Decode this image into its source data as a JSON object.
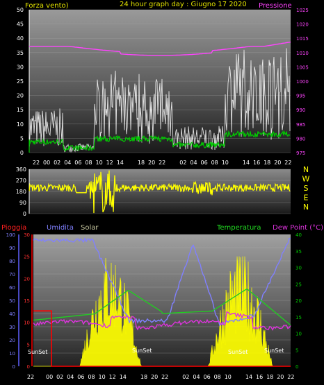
{
  "header": {
    "left_label": "Forza vento)",
    "title": "24 hour graph day : Giugno 17 2020",
    "right_label": "Pressione"
  },
  "wind_speed_axis": [
    "0",
    "5",
    "10",
    "15",
    "20",
    "25",
    "30",
    "35",
    "40",
    "45",
    "50"
  ],
  "pressure_axis": [
    "975",
    "980",
    "985",
    "990",
    "995",
    "1000",
    "1005",
    "1010",
    "1015",
    "1020",
    "1025"
  ],
  "hour_labels": [
    "22",
    "00",
    "02",
    "04",
    "06",
    "08",
    "10",
    "12",
    "14",
    "",
    "18",
    "20",
    "22",
    "",
    "02",
    "04",
    "06",
    "08",
    "10",
    "",
    "14",
    "16",
    "18",
    "20",
    "22"
  ],
  "direction_axis": [
    "0",
    "90",
    "180",
    "270",
    "360"
  ],
  "compass_labels": [
    "N",
    "W",
    "S",
    "E",
    "N"
  ],
  "lower_header": {
    "rain": "Pioggia",
    "humidity": "Umidita",
    "solar": "Solar",
    "temperature": "Temperatura",
    "dewpoint": "Dew Point (°C)"
  },
  "humidity_axis": [
    "0",
    "10",
    "20",
    "30",
    "40",
    "50",
    "60",
    "70",
    "80",
    "90",
    "100"
  ],
  "rain_axis": [
    "0",
    "5",
    "10",
    "15",
    "20",
    "25",
    "30"
  ],
  "temp_axis": [
    "0",
    "5",
    "10",
    "15",
    "20",
    "25",
    "30",
    "35",
    "40"
  ],
  "sunset_labels": [
    "SunSet",
    "SunSet",
    "SunSet",
    "SunSet"
  ],
  "colors": {
    "wind_avg": "#00cc00",
    "wind_gust": "#ffffff",
    "pressure": "#ff44ff",
    "direction": "#ffff00",
    "humidity": "#8080ff",
    "temperature": "#22cc22",
    "dewpoint": "#dd33dd",
    "solar": "#ffff00",
    "rain": "#ff0000",
    "pressure_axis_text": "#ff44ff",
    "temp_axis_text": "#00cc00"
  }
}
